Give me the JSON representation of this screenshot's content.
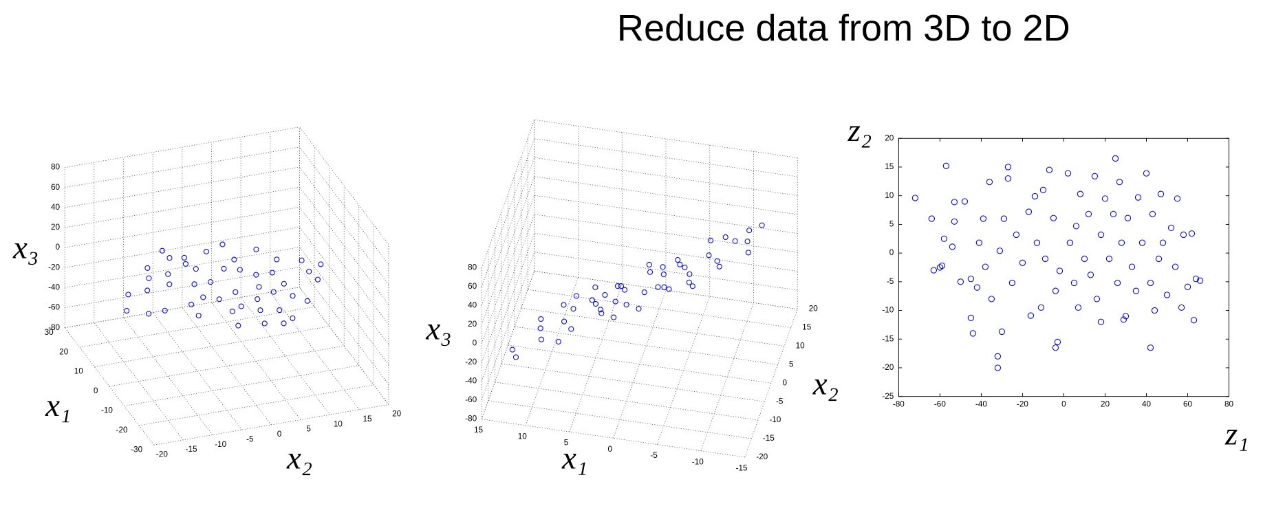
{
  "title": "Reduce data from 3D to 2D",
  "chart_data": [
    {
      "type": "scatter3d",
      "color": "#0000ff",
      "grid": true,
      "x1_label": "x₁",
      "x2_label": "x₂",
      "x3_label": "x₃",
      "x1lim": [
        -30,
        30
      ],
      "x1ticks": [
        -30,
        -20,
        -10,
        0,
        10,
        20,
        30
      ],
      "x2lim": [
        -20,
        20
      ],
      "x2ticks": [
        -20,
        -15,
        -10,
        -5,
        0,
        5,
        10,
        15,
        20
      ],
      "x3lim": [
        -80,
        80
      ],
      "x3ticks": [
        -80,
        -60,
        -40,
        -20,
        0,
        20,
        40,
        60,
        80
      ],
      "points": {
        "x1": [
          12,
          10,
          8,
          6,
          4,
          2,
          0,
          -2,
          -4,
          -6,
          -8,
          -10,
          -12,
          11,
          9,
          7,
          5,
          3,
          1,
          -1,
          -3,
          -5,
          -7,
          -9,
          -11,
          13,
          8,
          5,
          2,
          -1,
          -4,
          -6,
          -8,
          -13,
          10,
          6,
          3,
          0,
          -2,
          -5,
          -10,
          4,
          1,
          -3,
          7,
          -7,
          12,
          -12
        ],
        "x2": [
          5,
          -8,
          3,
          -12,
          10,
          -5,
          8,
          -14,
          4,
          -2,
          12,
          -6,
          2,
          -2,
          12,
          -15,
          0,
          -9,
          14,
          -3,
          9,
          -11,
          6,
          -1,
          10,
          -10,
          -4,
          7,
          2,
          11,
          -8,
          14,
          -13,
          -4,
          9,
          4,
          6,
          -10,
          5,
          1,
          6,
          -3,
          -13,
          -6,
          13,
          -9,
          -14,
          13
        ],
        "x3": [
          -68,
          -36,
          -44,
          -4,
          -42,
          3,
          -14,
          36,
          15,
          31,
          18,
          60,
          58,
          -49,
          -67,
          -7,
          -23,
          5,
          -31,
          9,
          -1,
          49,
          21,
          45,
          37,
          -43,
          -30,
          -41,
          -12,
          -19,
          38,
          4,
          64,
          71,
          -66,
          -36,
          -25,
          22,
          -2,
          25,
          40,
          -16,
          19,
          29,
          -59,
          51,
          -34,
          32
        ]
      }
    },
    {
      "type": "scatter3d",
      "color": "#0000ff",
      "grid": true,
      "x1_label": "x₁",
      "x2_label": "x₂",
      "x3_label": "x₃",
      "x1lim": [
        -15,
        15
      ],
      "x1ticks": [
        -15,
        -10,
        -5,
        0,
        5,
        10,
        15
      ],
      "x2lim": [
        -20,
        20
      ],
      "x2ticks": [
        -20,
        -15,
        -10,
        -5,
        0,
        5,
        10,
        15,
        20
      ],
      "x3lim": [
        -80,
        80
      ],
      "x3ticks": [
        -80,
        -60,
        -40,
        -20,
        0,
        20,
        40,
        60,
        80
      ],
      "points": {
        "x1": [
          12,
          10,
          8,
          6,
          4,
          2,
          0,
          -2,
          -4,
          -6,
          -8,
          -10,
          -12,
          11,
          9,
          7,
          5,
          3,
          1,
          -1,
          -3,
          -5,
          -7,
          -9,
          -11,
          13,
          8,
          5,
          2,
          -1,
          -4,
          -6,
          -8,
          -13,
          10,
          6,
          3,
          0,
          -2,
          -5,
          -10,
          4,
          1,
          -3,
          7,
          -7,
          12,
          -12
        ],
        "x2": [
          5,
          -8,
          3,
          -12,
          10,
          -5,
          8,
          -14,
          4,
          -2,
          12,
          -6,
          2,
          -2,
          12,
          -15,
          0,
          -9,
          14,
          -3,
          9,
          -11,
          6,
          -1,
          10,
          -10,
          -4,
          7,
          2,
          11,
          -8,
          14,
          -13,
          -4,
          9,
          4,
          6,
          -10,
          5,
          1,
          6,
          -3,
          -13,
          -6,
          13,
          -9,
          -14,
          13
        ],
        "x3": [
          -68,
          -36,
          -44,
          -4,
          -42,
          3,
          -14,
          36,
          15,
          31,
          18,
          60,
          58,
          -49,
          -67,
          -7,
          -23,
          5,
          -31,
          9,
          -1,
          49,
          21,
          45,
          37,
          -43,
          -30,
          -41,
          -12,
          -19,
          38,
          4,
          64,
          71,
          -66,
          -36,
          -25,
          22,
          -2,
          25,
          40,
          -16,
          19,
          29,
          -59,
          51,
          -34,
          32
        ]
      }
    },
    {
      "type": "scatter",
      "color": "#0000ff",
      "grid": false,
      "x_label": "z₁",
      "y_label": "z₂",
      "xlim": [
        -80,
        80
      ],
      "xticks": [
        -80,
        -60,
        -40,
        -20,
        0,
        20,
        40,
        60,
        80
      ],
      "ylim": [
        -25,
        20
      ],
      "yticks": [
        -25,
        -20,
        -15,
        -10,
        -5,
        0,
        5,
        10,
        15,
        20
      ],
      "x": [
        -72,
        -57,
        -64,
        -63,
        -59,
        -58,
        -54,
        -53,
        -53,
        -48,
        -50,
        -45,
        -45,
        -44,
        -42,
        -41,
        -39,
        -36,
        -38,
        -35,
        -31,
        -32,
        -32,
        -30,
        -29,
        -27,
        -27,
        -25,
        -23,
        -20,
        -17,
        -16,
        -14,
        -13,
        -11,
        -9,
        -7,
        -5,
        -4,
        -2,
        -3,
        -4,
        2,
        3,
        5,
        6,
        7,
        8,
        10,
        12,
        13,
        15,
        16,
        18,
        20,
        22,
        24,
        26,
        27,
        28,
        29,
        31,
        33,
        25,
        35,
        36,
        38,
        30,
        40,
        42,
        43,
        44,
        46,
        47,
        48,
        42,
        50,
        52,
        54,
        55,
        57,
        58,
        60,
        62,
        64,
        66,
        63,
        -60,
        -10,
        18
      ],
      "values": [
        9.6,
        15.2,
        6,
        -3,
        -2.2,
        2.5,
        1.1,
        5.5,
        8.9,
        9,
        -5,
        -4.5,
        -11.3,
        -14,
        -6,
        1.8,
        6,
        12.4,
        -2.4,
        -8,
        0.4,
        -18,
        -20,
        -13.7,
        6,
        13,
        15,
        -5.2,
        3.2,
        -1.7,
        7.2,
        -10.9,
        9.9,
        1.8,
        -9.5,
        -1,
        14.5,
        6.1,
        -6.6,
        -3.1,
        -15.5,
        -16.5,
        13.9,
        1.8,
        -5.2,
        4.7,
        -9.5,
        10.3,
        -1,
        6.8,
        -3.8,
        13.4,
        -8,
        3.2,
        9.5,
        -1,
        6.8,
        -5.2,
        12.4,
        1.8,
        -11.6,
        6.1,
        -2.4,
        16.5,
        -6.6,
        9.7,
        1.8,
        -11,
        13.9,
        -5.2,
        6.8,
        -10,
        -1,
        10.3,
        1.8,
        -16.5,
        -7.3,
        4.4,
        -2.4,
        9.5,
        -9.5,
        3.2,
        -5.9,
        3.4,
        -4.5,
        -4.8,
        -11.7,
        -2.5,
        11,
        -12
      ]
    }
  ]
}
